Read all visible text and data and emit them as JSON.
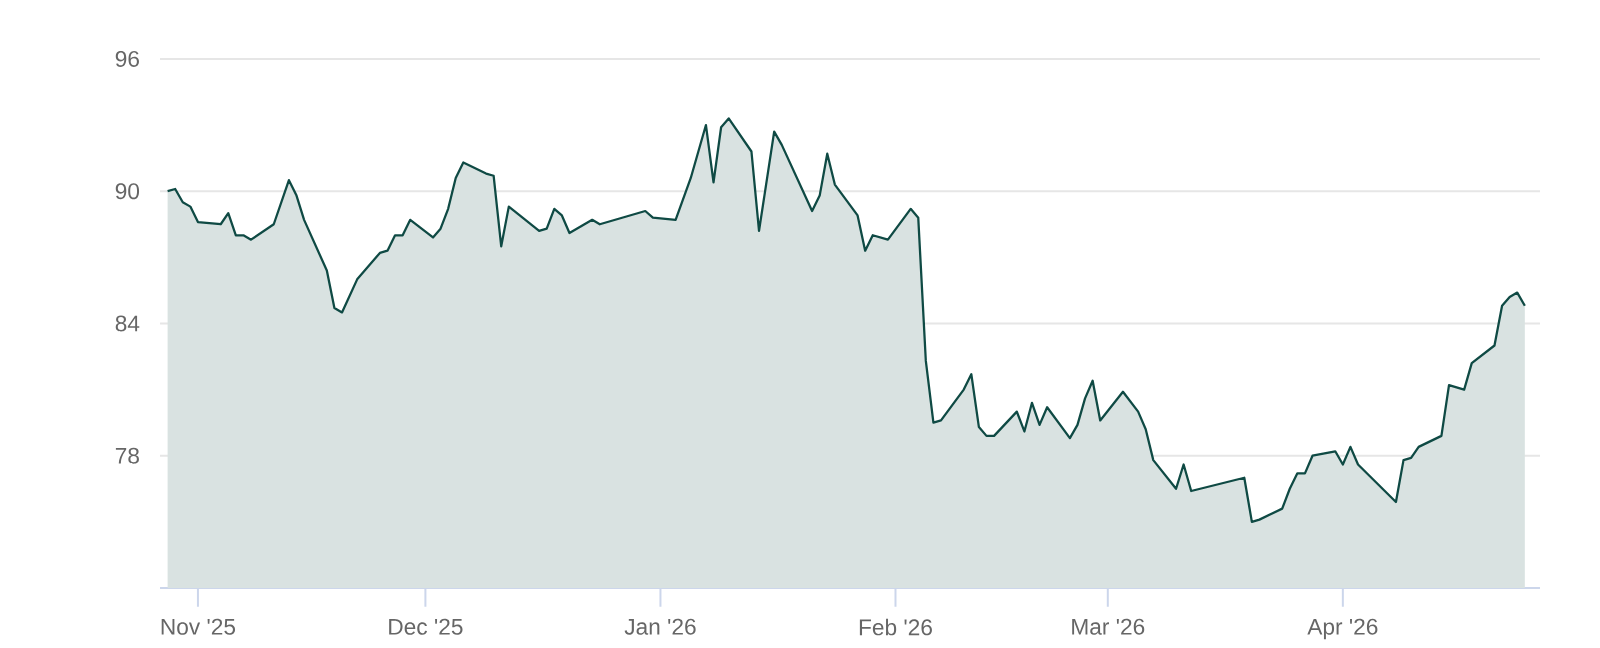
{
  "chart_data": {
    "type": "area",
    "grid": "y",
    "xlim": [
      "2025-10-27",
      "2026-04-27"
    ],
    "xticks": [
      {
        "value": "2025-11-01",
        "label": "Nov '25"
      },
      {
        "value": "2025-12-01",
        "label": "Dec '25"
      },
      {
        "value": "2026-01-01",
        "label": "Jan '26"
      },
      {
        "value": "2026-02-01",
        "label": "Feb '26"
      },
      {
        "value": "2026-03-01",
        "label": "Mar '26"
      },
      {
        "value": "2026-04-01",
        "label": "Apr '26"
      }
    ],
    "ylim": [
      72,
      96
    ],
    "yticks": [
      78,
      84,
      90,
      96
    ],
    "x": [
      "2025-10-28",
      "2025-10-29",
      "2025-10-30",
      "2025-10-31",
      "2025-11-01",
      "2025-11-04",
      "2025-11-05",
      "2025-11-06",
      "2025-11-07",
      "2025-11-08",
      "2025-11-11",
      "2025-11-13",
      "2025-11-14",
      "2025-11-15",
      "2025-11-18",
      "2025-11-19",
      "2025-11-20",
      "2025-11-22",
      "2025-11-25",
      "2025-11-26",
      "2025-11-27",
      "2025-11-28",
      "2025-11-29",
      "2025-12-02",
      "2025-12-03",
      "2025-12-04",
      "2025-12-05",
      "2025-12-06",
      "2025-12-09",
      "2025-12-10",
      "2025-12-11",
      "2025-12-12",
      "2025-12-16",
      "2025-12-17",
      "2025-12-18",
      "2025-12-19",
      "2025-12-20",
      "2025-12-23",
      "2025-12-24",
      "2025-12-30",
      "2025-12-31",
      "2026-01-03",
      "2026-01-05",
      "2026-01-07",
      "2026-01-08",
      "2026-01-09",
      "2026-01-10",
      "2026-01-13",
      "2026-01-14",
      "2026-01-16",
      "2026-01-17",
      "2026-01-21",
      "2026-01-22",
      "2026-01-23",
      "2026-01-24",
      "2026-01-27",
      "2026-01-28",
      "2026-01-29",
      "2026-01-31",
      "2026-02-03",
      "2026-02-04",
      "2026-02-05",
      "2026-02-06",
      "2026-02-07",
      "2026-02-10",
      "2026-02-11",
      "2026-02-12",
      "2026-02-13",
      "2026-02-14",
      "2026-02-17",
      "2026-02-18",
      "2026-02-19",
      "2026-02-20",
      "2026-02-21",
      "2026-02-24",
      "2026-02-25",
      "2026-02-26",
      "2026-02-27",
      "2026-02-28",
      "2026-03-03",
      "2026-03-05",
      "2026-03-06",
      "2026-03-07",
      "2026-03-10",
      "2026-03-11",
      "2026-03-12",
      "2026-03-19",
      "2026-03-20",
      "2026-03-21",
      "2026-03-24",
      "2026-03-25",
      "2026-03-26",
      "2026-03-27",
      "2026-03-28",
      "2026-03-31",
      "2026-04-01",
      "2026-04-02",
      "2026-04-03",
      "2026-04-08",
      "2026-04-09",
      "2026-04-10",
      "2026-04-11",
      "2026-04-14",
      "2026-04-15",
      "2026-04-17",
      "2026-04-18",
      "2026-04-21",
      "2026-04-22",
      "2026-04-23",
      "2026-04-24",
      "2026-04-25"
    ],
    "series": [
      {
        "color": "#0f4a44",
        "values": [
          90.0,
          90.1,
          89.5,
          89.3,
          88.6,
          88.5,
          89.0,
          88.0,
          88.0,
          87.8,
          88.5,
          90.5,
          89.8,
          88.7,
          86.4,
          84.7,
          84.5,
          86.0,
          87.2,
          87.3,
          88.0,
          88.0,
          88.7,
          87.9,
          88.3,
          89.2,
          90.6,
          91.3,
          90.8,
          90.7,
          87.5,
          89.3,
          88.2,
          88.3,
          89.2,
          88.9,
          88.1,
          88.7,
          88.5,
          89.1,
          88.8,
          88.7,
          90.6,
          93.0,
          90.4,
          92.9,
          93.3,
          91.8,
          88.2,
          92.7,
          92.1,
          89.1,
          89.8,
          91.7,
          90.3,
          88.9,
          87.3,
          88.0,
          87.8,
          89.2,
          88.8,
          82.3,
          79.5,
          79.6,
          81.0,
          81.7,
          79.3,
          78.9,
          78.9,
          80.0,
          79.1,
          80.4,
          79.4,
          80.2,
          78.8,
          79.4,
          80.6,
          81.4,
          79.6,
          80.9,
          80.0,
          79.2,
          77.8,
          76.5,
          77.6,
          76.4,
          77.0,
          75.0,
          75.1,
          75.6,
          76.5,
          77.2,
          77.2,
          78.0,
          78.2,
          77.6,
          78.4,
          77.6,
          75.9,
          77.8,
          77.9,
          78.4,
          78.9,
          81.2,
          81.0,
          82.2,
          83.0,
          84.8,
          85.2,
          85.4,
          84.8
        ]
      }
    ]
  }
}
